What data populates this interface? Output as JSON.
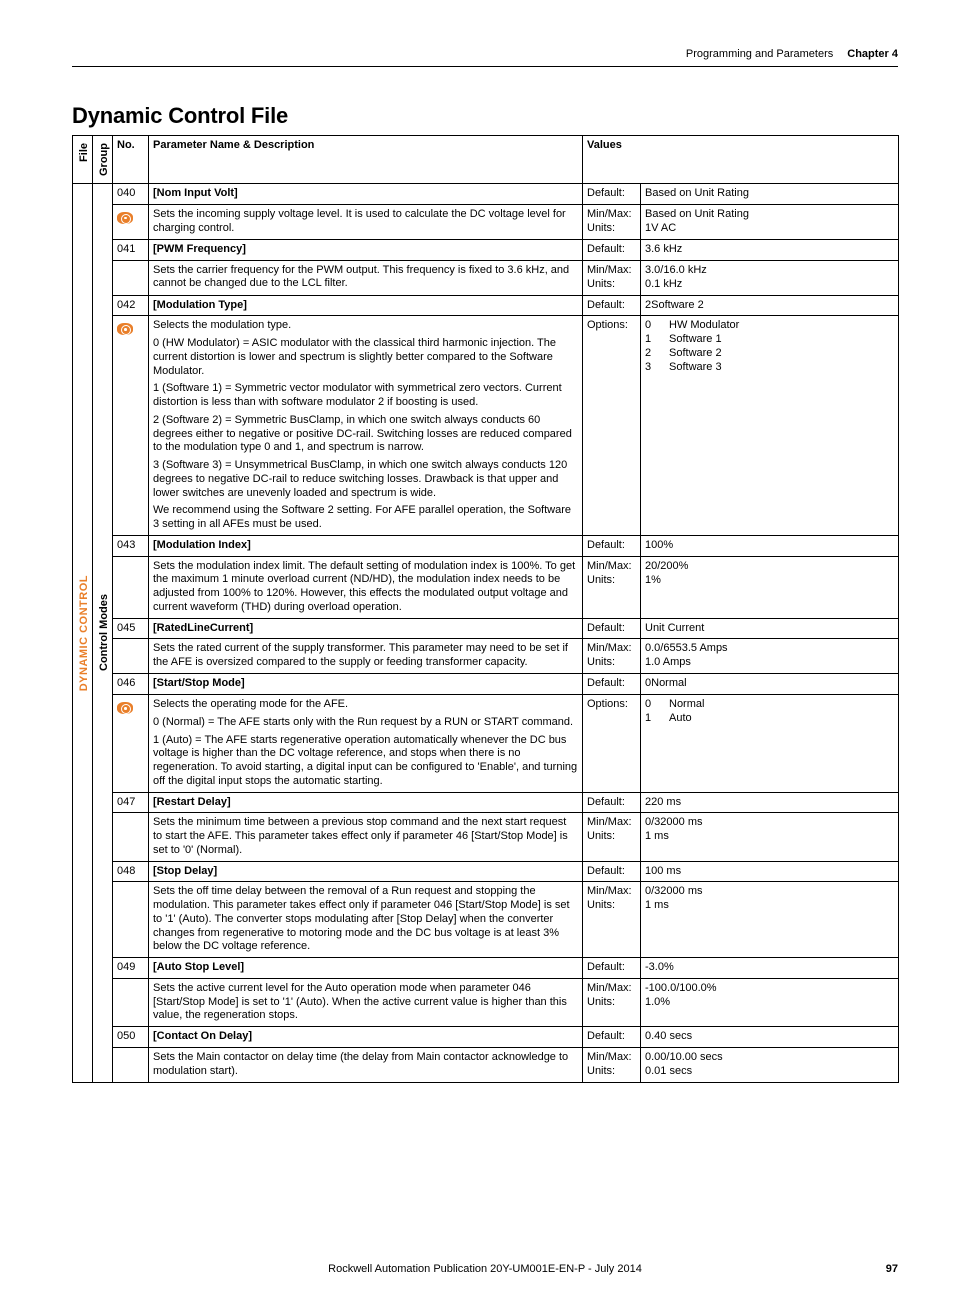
{
  "header": {
    "section": "Programming and Parameters",
    "chapter": "Chapter 4"
  },
  "title": "Dynamic Control File",
  "columns": {
    "file": "File",
    "group": "Group",
    "no": "No.",
    "desc": "Parameter Name & Description",
    "values": "Values"
  },
  "fileLabel": "DYNAMIC CONTROL",
  "groupLabel": "Control Modes",
  "rows": [
    {
      "no": "040",
      "eye": true,
      "name": "[Nom Input Volt]",
      "desc": [
        "Sets the incoming supply voltage level. It is used to calculate the DC voltage level for charging control."
      ],
      "labels": [
        "Default:",
        "Min/Max:",
        "Units:"
      ],
      "values": [
        [
          "Based on Unit Rating"
        ],
        [
          "Based on Unit Rating"
        ],
        [
          "1V AC"
        ]
      ]
    },
    {
      "no": "041",
      "eye": false,
      "name": "[PWM Frequency]",
      "desc": [
        "Sets the carrier frequency for the PWM output. This frequency is fixed to 3.6 kHz, and cannot be changed due to the LCL filter."
      ],
      "labels": [
        "Default:",
        "Min/Max:",
        "Units:"
      ],
      "values": [
        [
          "3.6 kHz"
        ],
        [
          "3.0/16.0 kHz"
        ],
        [
          "0.1 kHz"
        ]
      ]
    },
    {
      "no": "042",
      "eye": true,
      "name": "[Modulation Type]",
      "desc": [
        "Selects the modulation type.",
        "0 (HW Modulator) = ASIC modulator with the classical third harmonic injection. The current distortion is lower and spectrum is slightly better compared to the Software Modulator.",
        "1 (Software 1) = Symmetric vector modulator with symmetrical zero vectors. Current distortion is less than with software modulator 2 if boosting is used.",
        "2 (Software 2) = Symmetric BusClamp, in which one switch always conducts 60 degrees either to negative or positive DC-rail. Switching losses are reduced compared to the modulation type 0 and 1, and spectrum is narrow.",
        "3 (Software 3) = Unsymmetrical BusClamp, in which one switch always conducts 120 degrees to negative DC-rail to reduce switching losses. Drawback is that upper and lower switches are unevenly loaded and spectrum is wide.",
        "We recommend using the Software 2 setting. For AFE parallel operation, the Software 3 setting in all AFEs must be used."
      ],
      "labels": [
        "Default:",
        "Options:"
      ],
      "values": [
        [
          {
            "c": "2",
            "l": "Software 2"
          }
        ],
        [
          {
            "c": "0",
            "l": "HW Modulator"
          },
          {
            "c": "1",
            "l": "Software 1"
          },
          {
            "c": "2",
            "l": "Software 2"
          },
          {
            "c": "3",
            "l": "Software 3"
          }
        ]
      ],
      "opts": true
    },
    {
      "no": "043",
      "eye": false,
      "name": "[Modulation Index]",
      "desc": [
        "Sets the modulation index limit. The default setting of modulation index is 100%. To get the maximum 1 minute overload current (ND/HD), the modulation index needs to be adjusted from 100% to 120%. However, this effects the modulated output voltage and current waveform (THD) during overload operation."
      ],
      "labels": [
        "Default:",
        "Min/Max:",
        "Units:"
      ],
      "values": [
        [
          "100%"
        ],
        [
          "20/200%"
        ],
        [
          "1%"
        ]
      ]
    },
    {
      "no": "045",
      "eye": false,
      "name": "[RatedLineCurrent]",
      "desc": [
        "Sets the rated current of the supply transformer. This parameter may need to be set if the AFE is oversized compared to the supply or feeding transformer capacity."
      ],
      "labels": [
        "Default:",
        "Min/Max:",
        "Units:"
      ],
      "values": [
        [
          "Unit Current"
        ],
        [
          "0.0/6553.5 Amps"
        ],
        [
          "1.0 Amps"
        ]
      ]
    },
    {
      "no": "046",
      "eye": true,
      "name": "[Start/Stop Mode]",
      "desc": [
        "Selects the operating mode for the AFE.",
        "0 (Normal) = The AFE starts only with the Run request by a RUN or START command.",
        "1 (Auto) = The AFE starts regenerative operation automatically whenever the DC bus voltage is higher than the DC voltage reference, and stops when there is no regeneration. To avoid starting, a digital input can be configured to 'Enable', and turning off the digital input stops the automatic starting."
      ],
      "labels": [
        "Default:",
        "Options:"
      ],
      "values": [
        [
          {
            "c": "0",
            "l": "Normal"
          }
        ],
        [
          {
            "c": "0",
            "l": "Normal"
          },
          {
            "c": "1",
            "l": "Auto"
          }
        ]
      ],
      "opts": true
    },
    {
      "no": "047",
      "eye": false,
      "name": "[Restart Delay]",
      "desc": [
        "Sets the minimum time between a previous stop command and the next start request to start the AFE. This parameter takes effect only if parameter 46 [Start/Stop Mode] is set to '0' (Normal)."
      ],
      "labels": [
        "Default:",
        "Min/Max:",
        "Units:"
      ],
      "values": [
        [
          "220 ms"
        ],
        [
          "0/32000 ms"
        ],
        [
          "1 ms"
        ]
      ]
    },
    {
      "no": "048",
      "eye": false,
      "name": "[Stop Delay]",
      "desc": [
        "Sets the off time delay between the removal of a Run request and stopping the modulation. This parameter takes effect only if parameter 046 [Start/Stop Mode] is set to '1' (Auto). The converter stops modulating after [Stop Delay] when the converter changes from regenerative to motoring mode and the DC bus voltage is at least 3% below the DC voltage reference."
      ],
      "labels": [
        "Default:",
        "Min/Max:",
        "Units:"
      ],
      "values": [
        [
          "100 ms"
        ],
        [
          "0/32000 ms"
        ],
        [
          "1 ms"
        ]
      ]
    },
    {
      "no": "049",
      "eye": false,
      "name": "[Auto Stop Level]",
      "desc": [
        "Sets the active current level for the Auto operation mode when parameter 046 [Start/Stop Mode] is set to '1' (Auto). When the active current value is higher than this value, the regeneration stops."
      ],
      "labels": [
        "Default:",
        "Min/Max:",
        "Units:"
      ],
      "values": [
        [
          "-3.0%"
        ],
        [
          "-100.0/100.0%"
        ],
        [
          "1.0%"
        ]
      ]
    },
    {
      "no": "050",
      "eye": false,
      "name": "[Contact On Delay]",
      "desc": [
        "Sets the Main contactor on delay time (the delay from Main contactor acknowledge to modulation start)."
      ],
      "labels": [
        "Default:",
        "Min/Max:",
        "Units:"
      ],
      "values": [
        [
          "0.40 secs"
        ],
        [
          "0.00/10.00 secs"
        ],
        [
          "0.01 secs"
        ]
      ]
    }
  ],
  "footer": {
    "pub": "Rockwell Automation Publication 20Y-UM001E-EN-P - July 2014",
    "page": "97"
  }
}
